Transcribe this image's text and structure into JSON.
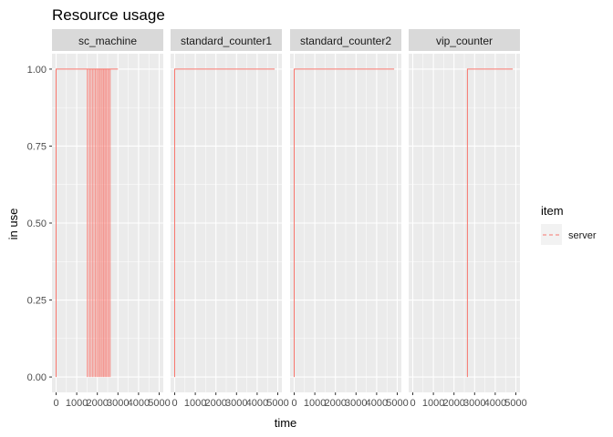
{
  "chart_data": {
    "type": "line",
    "title": "Resource usage",
    "xlabel": "time",
    "ylabel": "in use",
    "xlim": [
      -200,
      5200
    ],
    "ylim": [
      -0.05,
      1.05
    ],
    "x_ticks": [
      0,
      1000,
      2000,
      3000,
      4000,
      5000
    ],
    "x_tick_labels": [
      "0",
      "1000",
      "2000",
      "3000",
      "4000",
      "5000"
    ],
    "y_ticks": [
      0,
      0.25,
      0.5,
      0.75,
      1
    ],
    "y_tick_labels": [
      "0.00",
      "0.25",
      "0.50",
      "0.75",
      "1.00"
    ],
    "grid": true,
    "legend": {
      "title": "item",
      "position": "right",
      "entries": [
        {
          "label": "server",
          "color": "#F8766D",
          "linetype": "dashed"
        }
      ]
    },
    "colors": {
      "server": "#F8766D",
      "panel_bg": "#EBEBEB",
      "strip_bg": "#D9D9D9"
    },
    "facets": [
      {
        "name": "sc_machine",
        "series": [
          {
            "name": "server",
            "x": [
              0,
              0,
              3000
            ],
            "y": [
              0,
              1,
              1
            ]
          }
        ],
        "dips": [
          1500,
          1650,
          1780,
          1900,
          2000,
          2080,
          2150,
          2230,
          2300,
          2370,
          2440,
          2520,
          2600
        ]
      },
      {
        "name": "standard_counter1",
        "series": [
          {
            "name": "server",
            "x": [
              0,
              0,
              4850
            ],
            "y": [
              0,
              1,
              1
            ]
          }
        ],
        "dips": []
      },
      {
        "name": "standard_counter2",
        "series": [
          {
            "name": "server",
            "x": [
              0,
              0,
              4850
            ],
            "y": [
              0,
              1,
              1
            ]
          }
        ],
        "dips": []
      },
      {
        "name": "vip_counter",
        "series": [
          {
            "name": "server",
            "x": [
              2650,
              2650,
              4850
            ],
            "y": [
              0,
              1,
              1
            ]
          }
        ],
        "dips": []
      }
    ]
  }
}
